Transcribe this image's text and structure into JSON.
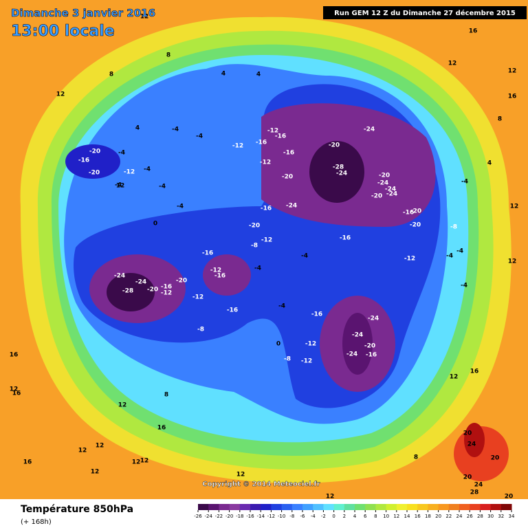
{
  "header": {
    "date": "Dimanche 3 janvier 2016",
    "time": "13:00 locale",
    "run": "Run GEM 12 Z du Dimanche 27 décembre 2015"
  },
  "map": {
    "contour_labels": [
      12,
      8,
      16,
      16,
      12,
      12,
      16,
      8,
      4,
      4,
      12,
      -4,
      -4,
      -12,
      -16,
      -16,
      -12,
      -16,
      -12,
      -20,
      -24,
      -28,
      -24,
      -20,
      -24,
      -16,
      -20,
      -20,
      -24,
      -24,
      -24,
      -20,
      -16,
      -20,
      -20,
      -8,
      -4,
      4,
      8,
      12,
      12,
      -12,
      -8,
      -16,
      -12,
      -4,
      -4,
      -4,
      -4,
      -4,
      -16,
      -12,
      -16,
      -24,
      -24,
      -28,
      -20,
      -16,
      -12,
      -20,
      -12,
      -16,
      -8,
      -4,
      -16,
      -24,
      -24,
      -20,
      -16,
      -24,
      -12,
      -12,
      -8,
      0,
      8,
      12,
      16,
      12,
      12,
      12,
      12,
      12,
      16,
      16,
      16,
      12,
      12,
      12,
      8,
      20,
      24,
      20,
      24,
      28,
      20,
      20,
      12,
      16,
      -20,
      -16,
      -20,
      -12,
      -4,
      -4,
      -4,
      12,
      0,
      -4,
      4,
      -4
    ]
  },
  "copyright": "Copyright © 2014 Meteociel.fr",
  "footer": {
    "title": "Température 850hPa",
    "subtitle": "(+ 168h)"
  },
  "legend": {
    "ticks": [
      -26,
      -24,
      -22,
      -20,
      -18,
      -16,
      -14,
      -12,
      -10,
      -8,
      -6,
      -4,
      -2,
      0,
      2,
      4,
      6,
      8,
      10,
      12,
      14,
      16,
      18,
      20,
      22,
      24,
      26,
      28,
      30,
      32,
      34
    ],
    "colors": [
      "#3a0a4a",
      "#5a1470",
      "#7a2a90",
      "#8a3aa0",
      "#6a2ab0",
      "#3a1ab0",
      "#2020c8",
      "#2040e0",
      "#2a60f0",
      "#3a80ff",
      "#40a0ff",
      "#50c0ff",
      "#60e0ff",
      "#60f0d0",
      "#60e0a0",
      "#70e070",
      "#90e050",
      "#b0e840",
      "#d0f030",
      "#f0f030",
      "#f8e020",
      "#f8c820",
      "#f8b020",
      "#f89820",
      "#f08020",
      "#f06020",
      "#e84020",
      "#d82020",
      "#b01010",
      "#800808"
    ]
  }
}
